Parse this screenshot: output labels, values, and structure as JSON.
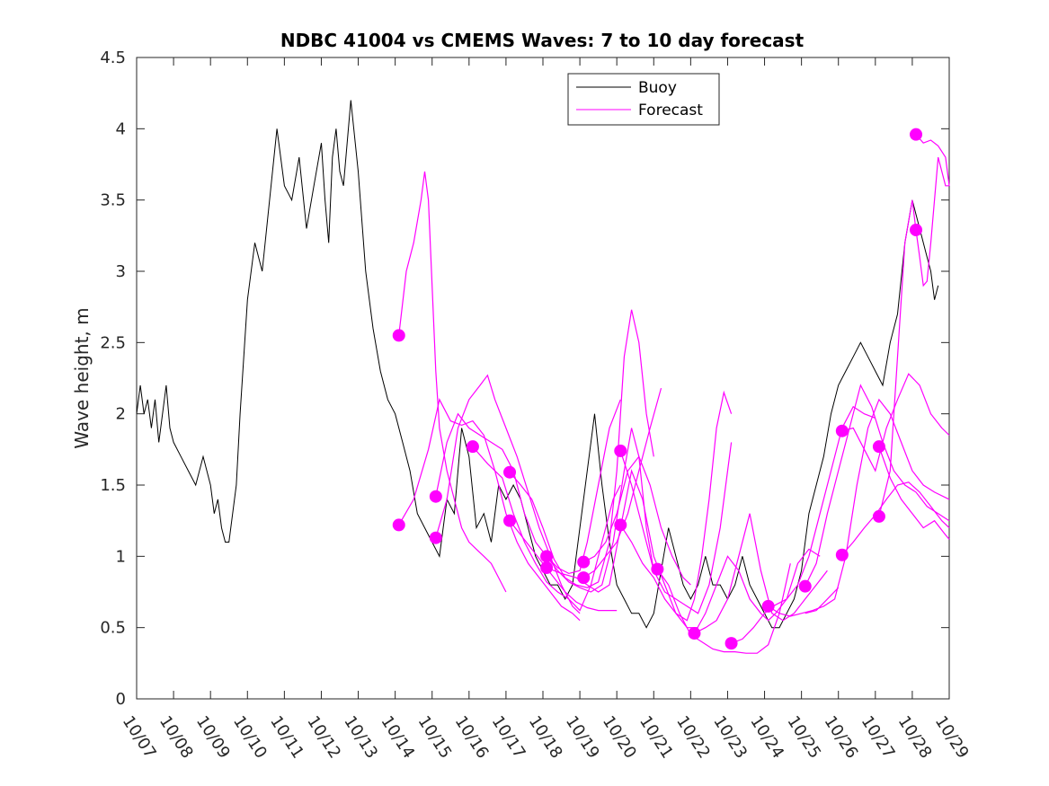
{
  "chart_data": {
    "type": "line",
    "title": "NDBC 41004 vs CMEMS Waves: 7 to 10 day forecast",
    "ylabel": "Wave height, m",
    "xlabel": "",
    "xlim": [
      0,
      22
    ],
    "ylim": [
      0,
      4.5
    ],
    "yticks": [
      0,
      0.5,
      1,
      1.5,
      2,
      2.5,
      3,
      3.5,
      4,
      4.5
    ],
    "ytick_labels": [
      "0",
      "0.5",
      "1",
      "1.5",
      "2",
      "2.5",
      "3",
      "3.5",
      "4",
      "4.5"
    ],
    "xtick_labels": [
      "10/07",
      "10/08",
      "10/09",
      "10/10",
      "10/11",
      "10/12",
      "10/13",
      "10/14",
      "10/15",
      "10/16",
      "10/17",
      "10/18",
      "10/19",
      "10/20",
      "10/21",
      "10/22",
      "10/23",
      "10/24",
      "10/25",
      "10/26",
      "10/27",
      "10/28",
      "10/29"
    ],
    "legend": {
      "position": "top-center",
      "entries": [
        {
          "name": "Buoy",
          "color": "#000000"
        },
        {
          "name": "Forecast",
          "color": "#ff00ff"
        }
      ]
    },
    "colors": {
      "buoy": "#000000",
      "forecast": "#ff00ff"
    },
    "buoy": {
      "name": "Buoy",
      "x": [
        0,
        0.1,
        0.2,
        0.3,
        0.4,
        0.5,
        0.6,
        0.7,
        0.8,
        0.9,
        1.0,
        1.2,
        1.4,
        1.6,
        1.8,
        2.0,
        2.1,
        2.2,
        2.3,
        2.4,
        2.5,
        2.6,
        2.7,
        2.8,
        3.0,
        3.2,
        3.4,
        3.6,
        3.8,
        4.0,
        4.2,
        4.4,
        4.6,
        4.8,
        5.0,
        5.1,
        5.2,
        5.3,
        5.4,
        5.5,
        5.6,
        5.7,
        5.8,
        6.0,
        6.2,
        6.4,
        6.6,
        6.8,
        7.0,
        7.2,
        7.4,
        7.6,
        7.8,
        8.0,
        8.2,
        8.4,
        8.6,
        8.8,
        9.0,
        9.2,
        9.4,
        9.6,
        9.8,
        10.0,
        10.2,
        10.4,
        10.6,
        10.8,
        11.0,
        11.2,
        11.4,
        11.6,
        11.8,
        12.0,
        12.2,
        12.4,
        12.6,
        12.8,
        13.0,
        13.2,
        13.4,
        13.6,
        13.8,
        14.0,
        14.2,
        14.4,
        14.6,
        14.8,
        15.0,
        15.2,
        15.4,
        15.6,
        15.8,
        16.0,
        16.2,
        16.4,
        16.6,
        16.8,
        17.0,
        17.2,
        17.4,
        17.6,
        17.8,
        18.0,
        18.2,
        18.4,
        18.6,
        18.8,
        19.0,
        19.2,
        19.4,
        19.6,
        19.8,
        20.0,
        20.2,
        20.4,
        20.6,
        20.8,
        21.0,
        21.2,
        21.4,
        21.5,
        21.6,
        21.7
      ],
      "y": [
        2.0,
        2.2,
        2.0,
        2.1,
        1.9,
        2.1,
        1.8,
        2.0,
        2.2,
        1.9,
        1.8,
        1.7,
        1.6,
        1.5,
        1.7,
        1.5,
        1.3,
        1.4,
        1.2,
        1.1,
        1.1,
        1.3,
        1.5,
        2.0,
        2.8,
        3.2,
        3.0,
        3.5,
        4.0,
        3.6,
        3.5,
        3.8,
        3.3,
        3.6,
        3.9,
        3.5,
        3.2,
        3.8,
        4.0,
        3.7,
        3.6,
        3.9,
        4.2,
        3.7,
        3.0,
        2.6,
        2.3,
        2.1,
        2.0,
        1.8,
        1.6,
        1.3,
        1.2,
        1.1,
        1.0,
        1.4,
        1.3,
        1.9,
        1.7,
        1.2,
        1.3,
        1.1,
        1.5,
        1.4,
        1.5,
        1.4,
        1.2,
        1.0,
        0.9,
        0.8,
        0.8,
        0.7,
        0.8,
        1.2,
        1.6,
        2.0,
        1.5,
        1.1,
        0.8,
        0.7,
        0.6,
        0.6,
        0.5,
        0.6,
        0.9,
        1.2,
        1.0,
        0.8,
        0.7,
        0.8,
        1.0,
        0.8,
        0.8,
        0.7,
        0.8,
        1.0,
        0.8,
        0.7,
        0.6,
        0.5,
        0.5,
        0.6,
        0.7,
        0.9,
        1.3,
        1.5,
        1.7,
        2.0,
        2.2,
        2.3,
        2.4,
        2.5,
        2.4,
        2.3,
        2.2,
        2.5,
        2.7,
        3.2,
        3.5,
        3.3,
        3.1,
        3.0,
        2.8,
        2.9
      ]
    },
    "forecasts": [
      {
        "name": "Forecast",
        "x": [
          7.1,
          7.3,
          7.5,
          7.7,
          7.8,
          7.9,
          8.0,
          8.1,
          8.2,
          8.4,
          8.6,
          8.8,
          9.0,
          9.2,
          9.4,
          9.6,
          9.8,
          10.0
        ],
        "y": [
          2.55,
          3.0,
          3.2,
          3.5,
          3.7,
          3.5,
          2.9,
          2.3,
          1.9,
          1.6,
          1.4,
          1.2,
          1.1,
          1.05,
          1.0,
          0.95,
          0.85,
          0.75
        ]
      },
      {
        "name": "Forecast",
        "x": [
          7.1,
          7.5,
          7.9,
          8.2,
          8.5,
          8.8,
          9.1,
          9.4,
          9.7,
          10.0,
          10.3,
          10.6,
          10.9,
          11.2,
          11.5,
          11.8,
          12.0
        ],
        "y": [
          1.22,
          1.4,
          1.75,
          2.1,
          1.95,
          1.92,
          1.95,
          1.85,
          1.6,
          1.3,
          1.1,
          0.95,
          0.85,
          0.75,
          0.65,
          0.6,
          0.55
        ]
      },
      {
        "name": "Forecast",
        "x": [
          8.1,
          8.4,
          8.7,
          9.0,
          9.3,
          9.5,
          9.7,
          10.0,
          10.3,
          10.6,
          10.9,
          11.2,
          11.5,
          11.8,
          12.0
        ],
        "y": [
          1.13,
          1.4,
          1.9,
          2.1,
          2.2,
          2.27,
          2.1,
          1.9,
          1.7,
          1.45,
          1.2,
          1.0,
          0.8,
          0.65,
          0.6
        ]
      },
      {
        "name": "Forecast",
        "x": [
          8.1,
          8.4,
          8.7,
          9.0,
          9.3,
          9.6,
          9.9,
          10.2,
          10.5,
          10.8,
          11.1,
          11.4,
          11.7,
          12.0,
          12.2,
          12.5,
          12.8,
          13.1
        ],
        "y": [
          1.42,
          1.8,
          2.0,
          1.9,
          1.85,
          1.8,
          1.75,
          1.6,
          1.3,
          1.1,
          1.0,
          0.92,
          0.88,
          0.9,
          1.1,
          1.5,
          1.9,
          2.1
        ]
      },
      {
        "name": "Forecast",
        "x": [
          9.1,
          9.5,
          9.9,
          10.2,
          10.5,
          10.8,
          11.1,
          11.4,
          11.7,
          12.0,
          12.3,
          12.6,
          12.9,
          13.1
        ],
        "y": [
          1.77,
          1.65,
          1.55,
          1.3,
          1.1,
          0.95,
          0.82,
          0.75,
          0.7,
          0.62,
          0.8,
          1.1,
          1.4,
          1.5
        ]
      },
      {
        "name": "Forecast",
        "x": [
          10.1,
          10.4,
          10.7,
          11.0,
          11.3,
          11.6,
          11.9,
          12.2,
          12.5,
          12.8,
          13.0,
          13.2,
          13.4,
          13.6,
          13.8,
          14.0
        ],
        "y": [
          1.59,
          1.5,
          1.4,
          1.2,
          0.98,
          0.85,
          0.8,
          0.78,
          0.82,
          1.1,
          1.6,
          2.4,
          2.73,
          2.5,
          2.0,
          1.7
        ]
      },
      {
        "name": "Forecast",
        "x": [
          10.1,
          10.4,
          10.7,
          11.0,
          11.3,
          11.6,
          11.9,
          12.2,
          12.5,
          12.8,
          13.0
        ],
        "y": [
          1.25,
          1.15,
          1.05,
          0.95,
          0.85,
          0.75,
          0.68,
          0.64,
          0.62,
          0.62,
          0.62
        ]
      },
      {
        "name": "Forecast",
        "x": [
          11.1,
          11.4,
          11.7,
          12.0,
          12.3,
          12.6,
          12.9,
          13.2,
          13.4,
          13.6,
          13.8,
          14.0
        ],
        "y": [
          1.0,
          0.9,
          0.82,
          0.78,
          0.75,
          0.8,
          1.1,
          1.6,
          1.9,
          1.7,
          1.2,
          0.9
        ]
      },
      {
        "name": "Forecast",
        "x": [
          11.1,
          11.5,
          11.9,
          12.2,
          12.5,
          12.8,
          13.1,
          13.4,
          13.7,
          14.0,
          14.3,
          14.6,
          14.9,
          15.2
        ],
        "y": [
          0.92,
          0.88,
          0.85,
          0.8,
          0.75,
          0.8,
          1.2,
          1.6,
          1.4,
          1.0,
          0.8,
          0.6,
          0.5,
          0.5
        ]
      },
      {
        "name": "Forecast",
        "x": [
          12.1,
          12.4,
          12.7,
          13.0,
          13.3,
          13.6,
          13.9,
          14.2,
          14.5,
          14.8,
          15.0
        ],
        "y": [
          0.96,
          1.0,
          1.1,
          1.3,
          1.6,
          1.7,
          1.5,
          1.2,
          1.0,
          0.85,
          0.8
        ]
      },
      {
        "name": "Forecast",
        "x": [
          12.1,
          12.4,
          12.7,
          13.0,
          13.3,
          13.6,
          13.9,
          14.2
        ],
        "y": [
          0.85,
          0.9,
          1.0,
          1.1,
          1.3,
          1.6,
          1.9,
          2.18
        ]
      },
      {
        "name": "Forecast",
        "x": [
          13.1,
          13.4,
          13.7,
          14.0,
          14.3,
          14.6,
          14.9,
          15.2,
          15.5,
          15.8,
          16.1
        ],
        "y": [
          1.74,
          1.5,
          1.2,
          0.9,
          0.75,
          0.7,
          0.65,
          0.6,
          0.8,
          1.2,
          1.8
        ]
      },
      {
        "name": "Forecast",
        "x": [
          13.1,
          13.4,
          13.7,
          14.0,
          14.3,
          14.6,
          14.9,
          15.1,
          15.3,
          15.5,
          15.7,
          15.9,
          16.1
        ],
        "y": [
          1.22,
          1.1,
          0.95,
          0.85,
          0.7,
          0.6,
          0.55,
          0.7,
          1.0,
          1.4,
          1.9,
          2.15,
          2.0
        ]
      },
      {
        "name": "Forecast",
        "x": [
          14.1,
          14.4,
          14.7,
          15.0,
          15.3,
          15.6,
          15.9,
          16.2,
          16.5,
          16.8,
          17.1,
          17.4,
          17.7
        ],
        "y": [
          0.91,
          0.8,
          0.6,
          0.45,
          0.4,
          0.35,
          0.33,
          0.33,
          0.32,
          0.32,
          0.38,
          0.6,
          0.95
        ]
      },
      {
        "name": "Forecast",
        "x": [
          15.1,
          15.4,
          15.7,
          16.0,
          16.3,
          16.6,
          16.9,
          17.1,
          17.3,
          17.6,
          17.9,
          18.2,
          18.5
        ],
        "y": [
          0.46,
          0.6,
          0.8,
          1.0,
          0.9,
          0.7,
          0.6,
          0.55,
          0.6,
          0.7,
          0.95,
          1.05,
          1.0
        ]
      },
      {
        "name": "Forecast",
        "x": [
          15.1,
          15.4,
          15.7,
          16.0,
          16.3,
          16.6,
          16.9,
          17.2,
          17.5,
          17.8,
          18.1,
          18.4,
          18.7
        ],
        "y": [
          0.46,
          0.5,
          0.55,
          0.7,
          1.0,
          1.3,
          0.9,
          0.6,
          0.55,
          0.6,
          0.7,
          0.8,
          0.9
        ]
      },
      {
        "name": "Forecast",
        "x": [
          16.1,
          16.4,
          16.7,
          17.0,
          17.3,
          17.6,
          17.9,
          18.2,
          18.5,
          18.8,
          19.1,
          19.4,
          19.7,
          20.0
        ],
        "y": [
          0.39,
          0.42,
          0.5,
          0.6,
          0.66,
          0.7,
          0.8,
          1.0,
          1.3,
          1.6,
          1.9,
          2.05,
          2.0,
          1.97
        ]
      },
      {
        "name": "Forecast",
        "x": [
          17.1,
          17.4,
          17.7,
          18.0,
          18.3,
          18.6,
          18.9,
          19.2,
          19.5,
          19.8,
          20.1,
          20.4,
          20.7,
          21.0,
          21.3,
          21.6,
          22.0
        ],
        "y": [
          0.65,
          0.6,
          0.58,
          0.6,
          0.62,
          0.65,
          0.7,
          1.0,
          1.5,
          1.9,
          2.1,
          2.0,
          1.8,
          1.6,
          1.5,
          1.45,
          1.4
        ]
      },
      {
        "name": "Forecast",
        "x": [
          18.1,
          18.4,
          18.7,
          19.0,
          19.3,
          19.6,
          19.9,
          20.2,
          20.5,
          20.8,
          21.1,
          21.4,
          21.7,
          22.0
        ],
        "y": [
          0.79,
          0.95,
          1.3,
          1.6,
          1.9,
          2.2,
          2.05,
          1.8,
          1.6,
          1.5,
          1.45,
          1.35,
          1.3,
          1.25
        ]
      },
      {
        "name": "Forecast",
        "x": [
          18.1,
          18.4,
          18.7,
          19.0
        ],
        "y": [
          0.6,
          0.62,
          0.7,
          0.78
        ]
      },
      {
        "name": "Forecast",
        "x": [
          19.1,
          19.4,
          19.7,
          20.0,
          20.3,
          20.6,
          20.9,
          21.2,
          21.5,
          21.8,
          22.0
        ],
        "y": [
          1.88,
          1.9,
          1.75,
          1.6,
          1.9,
          2.1,
          2.28,
          2.2,
          2.0,
          1.9,
          1.85
        ]
      },
      {
        "name": "Forecast",
        "x": [
          19.1,
          19.4,
          19.7,
          20.0,
          20.3,
          20.6,
          20.9,
          21.2,
          21.5,
          21.8,
          22.0
        ],
        "y": [
          1.01,
          1.1,
          1.2,
          1.29,
          1.4,
          1.5,
          1.52,
          1.45,
          1.35,
          1.25,
          1.2
        ]
      },
      {
        "name": "Forecast",
        "x": [
          20.1,
          20.4,
          20.7,
          21.0,
          21.3,
          21.6,
          21.9,
          22.0
        ],
        "y": [
          1.77,
          1.55,
          1.4,
          1.3,
          1.2,
          1.25,
          1.15,
          1.12
        ]
      },
      {
        "name": "Forecast",
        "x": [
          20.1,
          20.4,
          20.6,
          20.8,
          21.0,
          21.1,
          21.2,
          21.3,
          21.4,
          21.5,
          21.7,
          21.9,
          22.0
        ],
        "y": [
          1.28,
          1.6,
          2.4,
          3.2,
          3.5,
          3.29,
          3.1,
          2.9,
          2.93,
          3.2,
          3.8,
          3.6,
          3.6
        ]
      },
      {
        "name": "Forecast",
        "x": [
          21.1,
          21.3,
          21.5,
          21.7,
          21.9,
          22.0
        ],
        "y": [
          3.96,
          3.9,
          3.92,
          3.88,
          3.8,
          3.6
        ]
      }
    ],
    "forecast_markers": {
      "x": [
        7.1,
        7.1,
        8.1,
        8.1,
        9.1,
        10.1,
        10.1,
        11.1,
        11.1,
        12.1,
        12.1,
        13.1,
        13.1,
        14.1,
        15.1,
        16.1,
        17.1,
        18.1,
        19.1,
        19.1,
        20.1,
        20.1,
        21.1,
        21.1
      ],
      "y": [
        2.55,
        1.22,
        1.42,
        1.13,
        1.77,
        1.59,
        1.25,
        1.0,
        0.92,
        0.96,
        0.85,
        1.74,
        1.22,
        0.91,
        0.46,
        0.39,
        0.65,
        0.79,
        1.88,
        1.01,
        1.77,
        1.28,
        3.96,
        3.29
      ]
    }
  }
}
